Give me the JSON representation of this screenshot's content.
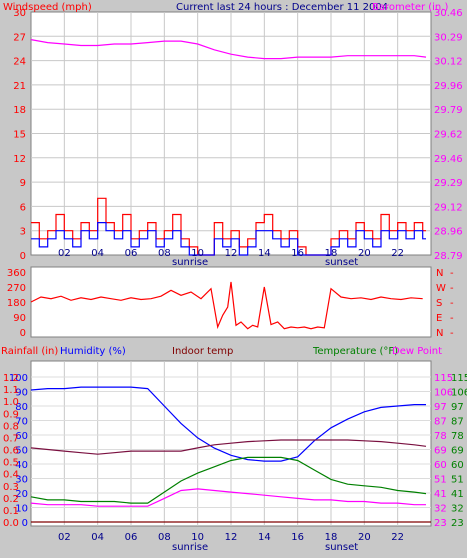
{
  "colors": {
    "background": "#c8c8c8",
    "plot_bg": "#ffffff",
    "grid": "#c8c8c8",
    "red": "#ff0000",
    "blue": "#0000ff",
    "magenta": "#ff00ff",
    "dark_red": "#800000",
    "dark_purple": "#7a1040",
    "green": "#008000",
    "header_blue": "#00008b",
    "axis_text": "#00008b"
  },
  "chart_data": [
    {
      "type": "line",
      "header": "Current last 24 hours : December 11 2004",
      "y_left_label": "Windspeed (mph)",
      "y_right_label": "Barometer (in.)",
      "y_left_ticks": [
        "30",
        "27",
        "24",
        "21",
        "18",
        "15",
        "12",
        "9",
        "6",
        "3",
        "0"
      ],
      "y_right_ticks": [
        "30.46",
        "30.29",
        "30.12",
        "29.96",
        "29.79",
        "29.62",
        "29.46",
        "29.29",
        "29.12",
        "28.96",
        "28.79"
      ],
      "y_left_range": [
        0,
        30
      ],
      "y_right_range": [
        28.79,
        30.46
      ],
      "x_ticks": [
        "02",
        "04",
        "06",
        "08",
        "10",
        "12",
        "14",
        "16",
        "18",
        "20",
        "22"
      ],
      "x_range": [
        0,
        24
      ],
      "sunrise_label": "sunrise",
      "sunset_label": "sunset",
      "sunrise_hour": 9,
      "sunset_hour": 17,
      "grid": true,
      "series": [
        {
          "color": "#ff00ff",
          "axis": "right",
          "x": [
            0,
            1,
            2,
            3,
            4,
            5,
            6,
            7,
            8,
            9,
            10,
            11,
            12,
            13,
            14,
            15,
            16,
            17,
            18,
            19,
            20,
            21,
            22,
            23,
            23.7
          ],
          "values": [
            30.27,
            30.25,
            30.24,
            30.23,
            30.23,
            30.24,
            30.24,
            30.25,
            30.26,
            30.26,
            30.24,
            30.2,
            30.17,
            30.15,
            30.14,
            30.14,
            30.15,
            30.15,
            30.15,
            30.16,
            30.16,
            30.16,
            30.16,
            30.16,
            30.15
          ]
        },
        {
          "color": "#ff0000",
          "axis": "left",
          "style": "gust-step",
          "x": [
            0,
            0.5,
            1,
            1.5,
            2,
            2.5,
            3,
            3.5,
            4,
            4.5,
            5,
            5.5,
            6,
            6.5,
            7,
            7.5,
            8,
            8.5,
            9,
            9.5,
            10,
            10.5,
            11,
            11.5,
            12,
            12.5,
            13,
            13.5,
            14,
            14.5,
            15,
            15.5,
            16,
            16.5,
            17,
            17.5,
            18,
            18.5,
            19,
            19.5,
            20,
            20.5,
            21,
            21.5,
            22,
            22.5,
            23,
            23.5
          ],
          "values": [
            4,
            2,
            3,
            5,
            3,
            2,
            4,
            3,
            7,
            4,
            3,
            5,
            2,
            3,
            4,
            2,
            3,
            5,
            2,
            1,
            0,
            0,
            4,
            2,
            3,
            1,
            2,
            4,
            5,
            3,
            2,
            3,
            1,
            0,
            0,
            0,
            2,
            3,
            2,
            4,
            3,
            2,
            5,
            3,
            4,
            3,
            4,
            3
          ]
        },
        {
          "color": "#0000ff",
          "axis": "left",
          "style": "wind-step",
          "x": [
            0,
            0.5,
            1,
            1.5,
            2,
            2.5,
            3,
            3.5,
            4,
            4.5,
            5,
            5.5,
            6,
            6.5,
            7,
            7.5,
            8,
            8.5,
            9,
            9.5,
            10,
            10.5,
            11,
            11.5,
            12,
            12.5,
            13,
            13.5,
            14,
            14.5,
            15,
            15.5,
            16,
            16.5,
            17,
            17.5,
            18,
            18.5,
            19,
            19.5,
            20,
            20.5,
            21,
            21.5,
            22,
            22.5,
            23,
            23.5
          ],
          "values": [
            2,
            1,
            2,
            3,
            2,
            1,
            3,
            2,
            4,
            3,
            2,
            3,
            1,
            2,
            3,
            1,
            2,
            3,
            1,
            0,
            0,
            0,
            2,
            1,
            2,
            0,
            1,
            3,
            3,
            2,
            1,
            2,
            0,
            0,
            0,
            0,
            1,
            2,
            1,
            3,
            2,
            1,
            3,
            2,
            3,
            2,
            3,
            2
          ]
        }
      ]
    },
    {
      "type": "line",
      "y_left_ticks": [
        "360",
        "270",
        "180",
        "90",
        "0"
      ],
      "y_left_range": [
        0,
        360
      ],
      "y_right_ticks": [
        "N",
        "W",
        "S",
        "E",
        "N"
      ],
      "x_range": [
        0,
        24
      ],
      "grid": false,
      "series": [
        {
          "color": "#ff0000",
          "axis": "left",
          "x": [
            0,
            0.6,
            1.2,
            1.8,
            2.4,
            3,
            3.6,
            4.2,
            4.8,
            5.4,
            6,
            6.6,
            7.2,
            7.8,
            8.4,
            9,
            9.6,
            10.2,
            10.8,
            11.2,
            11.5,
            11.8,
            12,
            12.3,
            12.6,
            13,
            13.3,
            13.6,
            14,
            14.4,
            14.8,
            15.2,
            15.6,
            16,
            16.4,
            16.8,
            17.2,
            17.6,
            18,
            18.6,
            19.2,
            19.8,
            20.4,
            21,
            21.6,
            22.2,
            22.8,
            23.5
          ],
          "values": [
            180,
            210,
            200,
            215,
            190,
            205,
            195,
            210,
            200,
            190,
            205,
            195,
            200,
            215,
            250,
            220,
            240,
            200,
            260,
            30,
            100,
            150,
            300,
            40,
            60,
            20,
            40,
            30,
            270,
            45,
            60,
            20,
            30,
            25,
            30,
            20,
            30,
            25,
            260,
            210,
            200,
            205,
            195,
            210,
            200,
            195,
            205,
            200
          ]
        }
      ]
    },
    {
      "type": "line",
      "labels": {
        "rainfall": "Rainfall (in)",
        "humidity": "Humidity (%)",
        "indoor": "Indoor temp",
        "temperature": "Temperature (°F)",
        "dewpoint": "Dew Point"
      },
      "y_left_ticks_humidity": [
        "100",
        "90",
        "80",
        "70",
        "60",
        "50",
        "40",
        "30",
        "20",
        "10",
        "0"
      ],
      "y_left_ticks_rain": [
        "1.2",
        "1.1",
        "1.0",
        "0.9",
        "0.8",
        "0.7",
        "0.6",
        "0.5",
        "0.4",
        "0.3",
        "0.2",
        "0.1",
        "0.0"
      ],
      "y_right_ticks_temp": [
        "115",
        "106",
        "97",
        "87",
        "78",
        "69",
        "60",
        "51",
        "41",
        "32",
        "23"
      ],
      "y_right_ticks_dew": [
        "115",
        "106",
        "97",
        "87",
        "78",
        "69",
        "60",
        "51",
        "41",
        "32",
        "23"
      ],
      "humidity_range": [
        0,
        100
      ],
      "temp_range": [
        23,
        115
      ],
      "x_ticks": [
        "02",
        "04",
        "06",
        "08",
        "10",
        "12",
        "14",
        "16",
        "18",
        "20",
        "22"
      ],
      "x_range": [
        0,
        24
      ],
      "sunrise_label": "sunrise",
      "sunset_label": "sunset",
      "sunrise_hour": 9,
      "sunset_hour": 17,
      "grid": true,
      "series": [
        {
          "color": "#0000ff",
          "axis": "humidity",
          "x": [
            0,
            1,
            2,
            3,
            4,
            5,
            6,
            7,
            8,
            9,
            10,
            11,
            12,
            13,
            14,
            15,
            16,
            17,
            18,
            19,
            20,
            21,
            22,
            23,
            23.7
          ],
          "values": [
            91,
            92,
            92,
            93,
            93,
            93,
            93,
            92,
            80,
            68,
            58,
            51,
            46,
            43,
            42,
            42,
            45,
            56,
            65,
            71,
            76,
            79,
            80,
            81,
            81
          ]
        },
        {
          "color": "#7a1040",
          "axis": "temp",
          "x": [
            0,
            1,
            2,
            3,
            4,
            5,
            6,
            7,
            8,
            9,
            10,
            11,
            12,
            13,
            14,
            15,
            16,
            17,
            18,
            19,
            20,
            21,
            22,
            23,
            23.7
          ],
          "values": [
            70,
            69,
            68,
            67,
            66,
            67,
            68,
            68,
            68,
            68,
            70,
            72,
            73,
            74,
            74.5,
            75,
            75,
            75,
            75,
            75,
            74.5,
            74,
            73,
            72,
            71
          ]
        },
        {
          "color": "#008000",
          "axis": "temp",
          "x": [
            0,
            1,
            2,
            3,
            4,
            5,
            6,
            7,
            8,
            9,
            10,
            11,
            12,
            13,
            14,
            15,
            16,
            17,
            18,
            19,
            20,
            21,
            22,
            23,
            23.7
          ],
          "values": [
            39,
            37,
            37,
            36,
            36,
            36,
            35,
            35,
            42,
            49,
            54,
            58,
            62,
            64,
            64,
            64,
            62,
            56,
            50,
            47,
            46,
            45,
            43,
            42,
            41
          ]
        },
        {
          "color": "#ff00ff",
          "axis": "temp",
          "x": [
            0,
            1,
            2,
            3,
            4,
            5,
            6,
            7,
            8,
            9,
            10,
            11,
            12,
            13,
            14,
            15,
            16,
            17,
            18,
            19,
            20,
            21,
            22,
            23,
            23.7
          ],
          "values": [
            35,
            34,
            34,
            34,
            33,
            33,
            33,
            33,
            38,
            43,
            44,
            43,
            42,
            41,
            40,
            39,
            38,
            37,
            37,
            36,
            36,
            35,
            35,
            34,
            34
          ]
        },
        {
          "color": "#800000",
          "axis": "rain",
          "x": [
            0,
            24
          ],
          "values": [
            0.0,
            0.0
          ]
        }
      ]
    }
  ]
}
